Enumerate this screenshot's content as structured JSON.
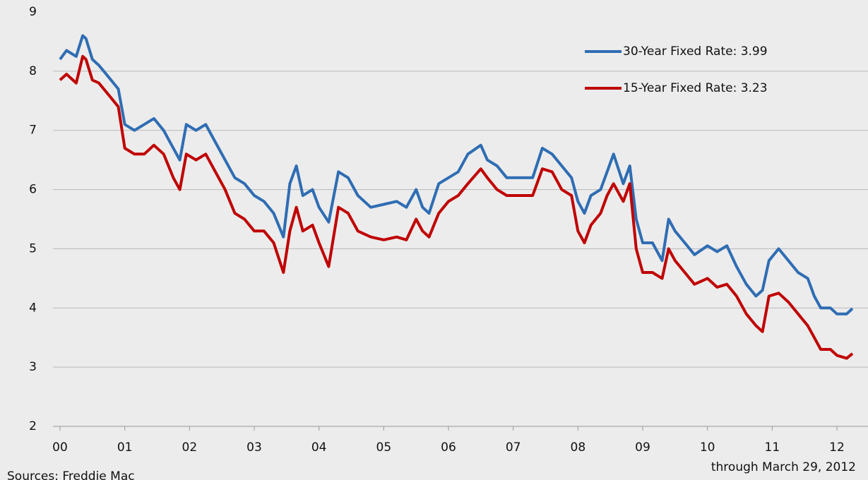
{
  "chart_data": {
    "type": "line",
    "source": "Sources: Freddie Mac",
    "note": "through March 29, 2012",
    "x": [
      2000.0,
      2000.1,
      2000.25,
      2000.35,
      2000.4,
      2000.5,
      2000.6,
      2000.75,
      2000.9,
      2001.0,
      2001.15,
      2001.3,
      2001.45,
      2001.6,
      2001.75,
      2001.85,
      2001.95,
      2002.1,
      2002.25,
      2002.4,
      2002.55,
      2002.7,
      2002.85,
      2003.0,
      2003.15,
      2003.3,
      2003.45,
      2003.55,
      2003.65,
      2003.75,
      2003.9,
      2004.0,
      2004.15,
      2004.3,
      2004.45,
      2004.6,
      2004.8,
      2005.0,
      2005.2,
      2005.35,
      2005.5,
      2005.6,
      2005.7,
      2005.85,
      2006.0,
      2006.15,
      2006.3,
      2006.5,
      2006.6,
      2006.75,
      2006.9,
      2007.0,
      2007.15,
      2007.3,
      2007.45,
      2007.6,
      2007.75,
      2007.9,
      2008.0,
      2008.1,
      2008.2,
      2008.35,
      2008.45,
      2008.55,
      2008.7,
      2008.8,
      2008.9,
      2009.0,
      2009.15,
      2009.3,
      2009.4,
      2009.5,
      2009.65,
      2009.8,
      2010.0,
      2010.15,
      2010.3,
      2010.45,
      2010.6,
      2010.75,
      2010.85,
      2010.95,
      2011.1,
      2011.25,
      2011.4,
      2011.55,
      2011.65,
      2011.75,
      2011.9,
      2012.0,
      2012.15,
      2012.24
    ],
    "series": [
      {
        "name": "30-Year Fixed Rate: 3.99",
        "color": "#2f6db3",
        "values": [
          8.2,
          8.35,
          8.25,
          8.6,
          8.55,
          8.2,
          8.1,
          7.9,
          7.7,
          7.1,
          7.0,
          7.1,
          7.2,
          7.0,
          6.7,
          6.5,
          7.1,
          7.0,
          7.1,
          6.8,
          6.5,
          6.2,
          6.1,
          5.9,
          5.8,
          5.6,
          5.2,
          6.1,
          6.4,
          5.9,
          6.0,
          5.7,
          5.45,
          6.3,
          6.2,
          5.9,
          5.7,
          5.75,
          5.8,
          5.7,
          6.0,
          5.7,
          5.6,
          6.1,
          6.2,
          6.3,
          6.6,
          6.75,
          6.5,
          6.4,
          6.2,
          6.2,
          6.2,
          6.2,
          6.7,
          6.6,
          6.4,
          6.2,
          5.8,
          5.6,
          5.9,
          6.0,
          6.3,
          6.6,
          6.1,
          6.4,
          5.5,
          5.1,
          5.1,
          4.8,
          5.5,
          5.3,
          5.1,
          4.9,
          5.05,
          4.95,
          5.05,
          4.7,
          4.4,
          4.2,
          4.3,
          4.8,
          5.0,
          4.8,
          4.6,
          4.5,
          4.2,
          4.0,
          4.0,
          3.9,
          3.9,
          3.99
        ]
      },
      {
        "name": "15-Year Fixed Rate: 3.23",
        "color": "#c00000",
        "values": [
          7.85,
          7.95,
          7.8,
          8.25,
          8.2,
          7.85,
          7.8,
          7.6,
          7.4,
          6.7,
          6.6,
          6.6,
          6.75,
          6.6,
          6.2,
          6.0,
          6.6,
          6.5,
          6.6,
          6.3,
          6.0,
          5.6,
          5.5,
          5.3,
          5.3,
          5.1,
          4.6,
          5.3,
          5.7,
          5.3,
          5.4,
          5.1,
          4.7,
          5.7,
          5.6,
          5.3,
          5.2,
          5.15,
          5.2,
          5.15,
          5.5,
          5.3,
          5.2,
          5.6,
          5.8,
          5.9,
          6.1,
          6.35,
          6.2,
          6.0,
          5.9,
          5.9,
          5.9,
          5.9,
          6.35,
          6.3,
          6.0,
          5.9,
          5.3,
          5.1,
          5.4,
          5.6,
          5.9,
          6.1,
          5.8,
          6.1,
          5.0,
          4.6,
          4.6,
          4.5,
          5.0,
          4.8,
          4.6,
          4.4,
          4.5,
          4.35,
          4.4,
          4.2,
          3.9,
          3.7,
          3.6,
          4.2,
          4.25,
          4.1,
          3.9,
          3.7,
          3.5,
          3.3,
          3.3,
          3.2,
          3.15,
          3.23
        ]
      }
    ],
    "xlim": [
      2000,
      2012
    ],
    "xticks": [
      {
        "value": 2000,
        "label": "00"
      },
      {
        "value": 2001,
        "label": "01"
      },
      {
        "value": 2002,
        "label": "02"
      },
      {
        "value": 2003,
        "label": "03"
      },
      {
        "value": 2004,
        "label": "04"
      },
      {
        "value": 2005,
        "label": "05"
      },
      {
        "value": 2006,
        "label": "06"
      },
      {
        "value": 2007,
        "label": "07"
      },
      {
        "value": 2008,
        "label": "08"
      },
      {
        "value": 2009,
        "label": "09"
      },
      {
        "value": 2010,
        "label": "10"
      },
      {
        "value": 2011,
        "label": "11"
      },
      {
        "value": 2012,
        "label": "12"
      }
    ],
    "ylim": [
      2,
      9
    ],
    "yticks": [
      2,
      3,
      4,
      5,
      6,
      7,
      8,
      9
    ],
    "grid": true,
    "legend": "upper right"
  }
}
